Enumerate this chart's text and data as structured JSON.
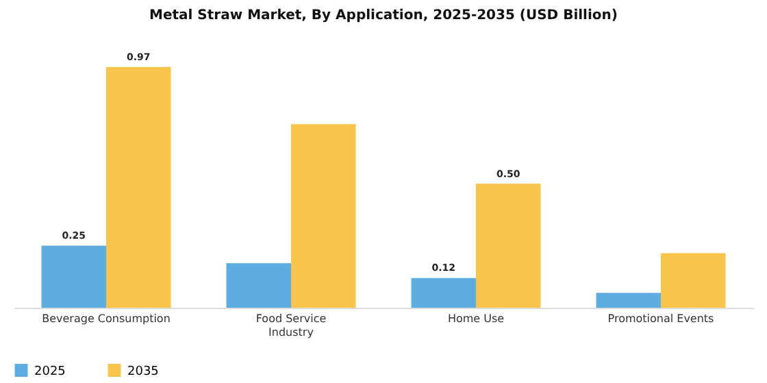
{
  "chart_data": {
    "type": "bar",
    "title": "Metal Straw Market, By Application, 2025-2035 (USD Billion)",
    "categories": [
      "Beverage Consumption",
      "Food Service Industry",
      "Home Use",
      "Promotional Events"
    ],
    "series": [
      {
        "name": "2025",
        "color": "#5dade2",
        "values": [
          0.25,
          0.18,
          0.12,
          0.06
        ],
        "value_labels": [
          "0.25",
          null,
          "0.12",
          null
        ]
      },
      {
        "name": "2035",
        "color": "#f9c44a",
        "values": [
          0.97,
          0.74,
          0.5,
          0.22
        ],
        "value_labels": [
          "0.97",
          null,
          "0.50",
          null
        ]
      }
    ],
    "legend": "bottom"
  }
}
